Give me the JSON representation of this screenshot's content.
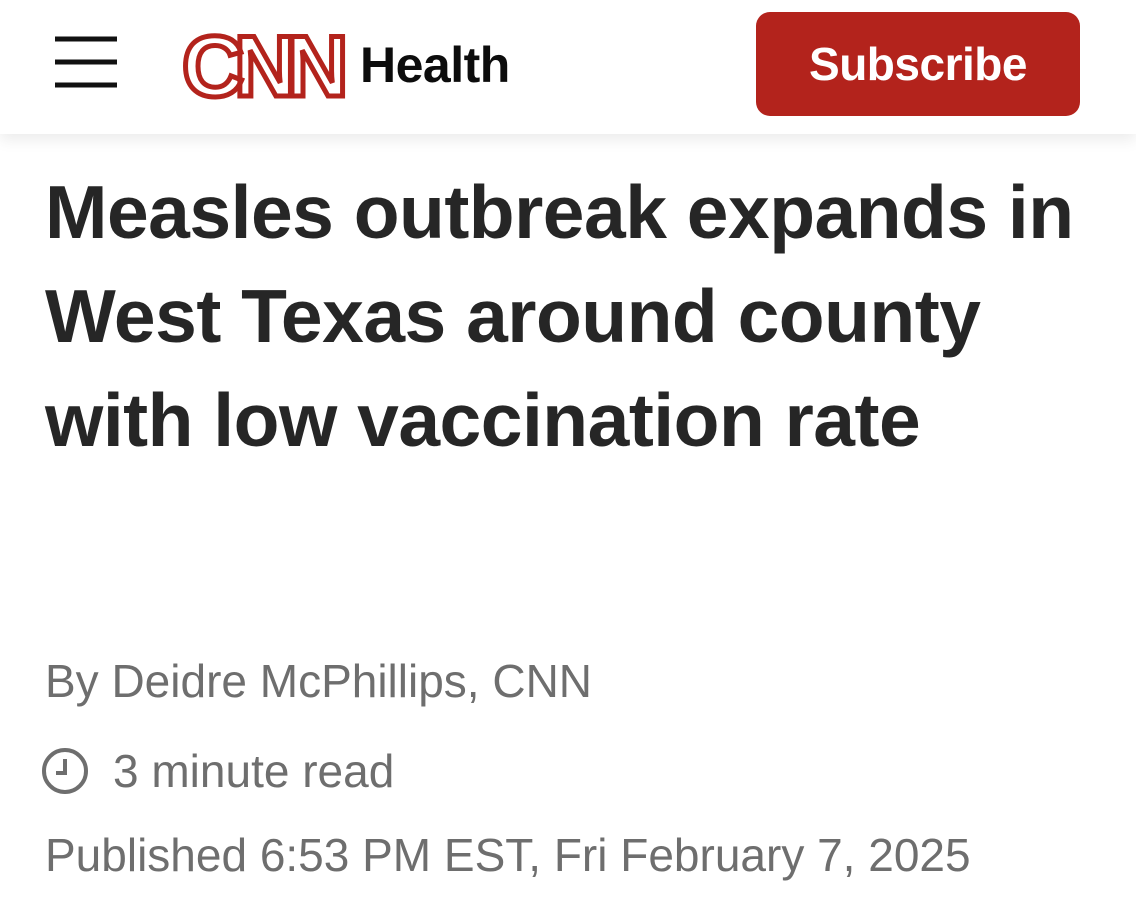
{
  "header": {
    "logo": "CNN",
    "section": "Health",
    "subscribe": "Subscribe"
  },
  "article": {
    "headline": "Measles outbreak expands in West Texas around county with low vaccination rate",
    "byline": "By Deidre McPhillips, CNN",
    "read_time": "3 minute read",
    "published": "Published 6:53 PM EST, Fri February 7, 2025"
  }
}
